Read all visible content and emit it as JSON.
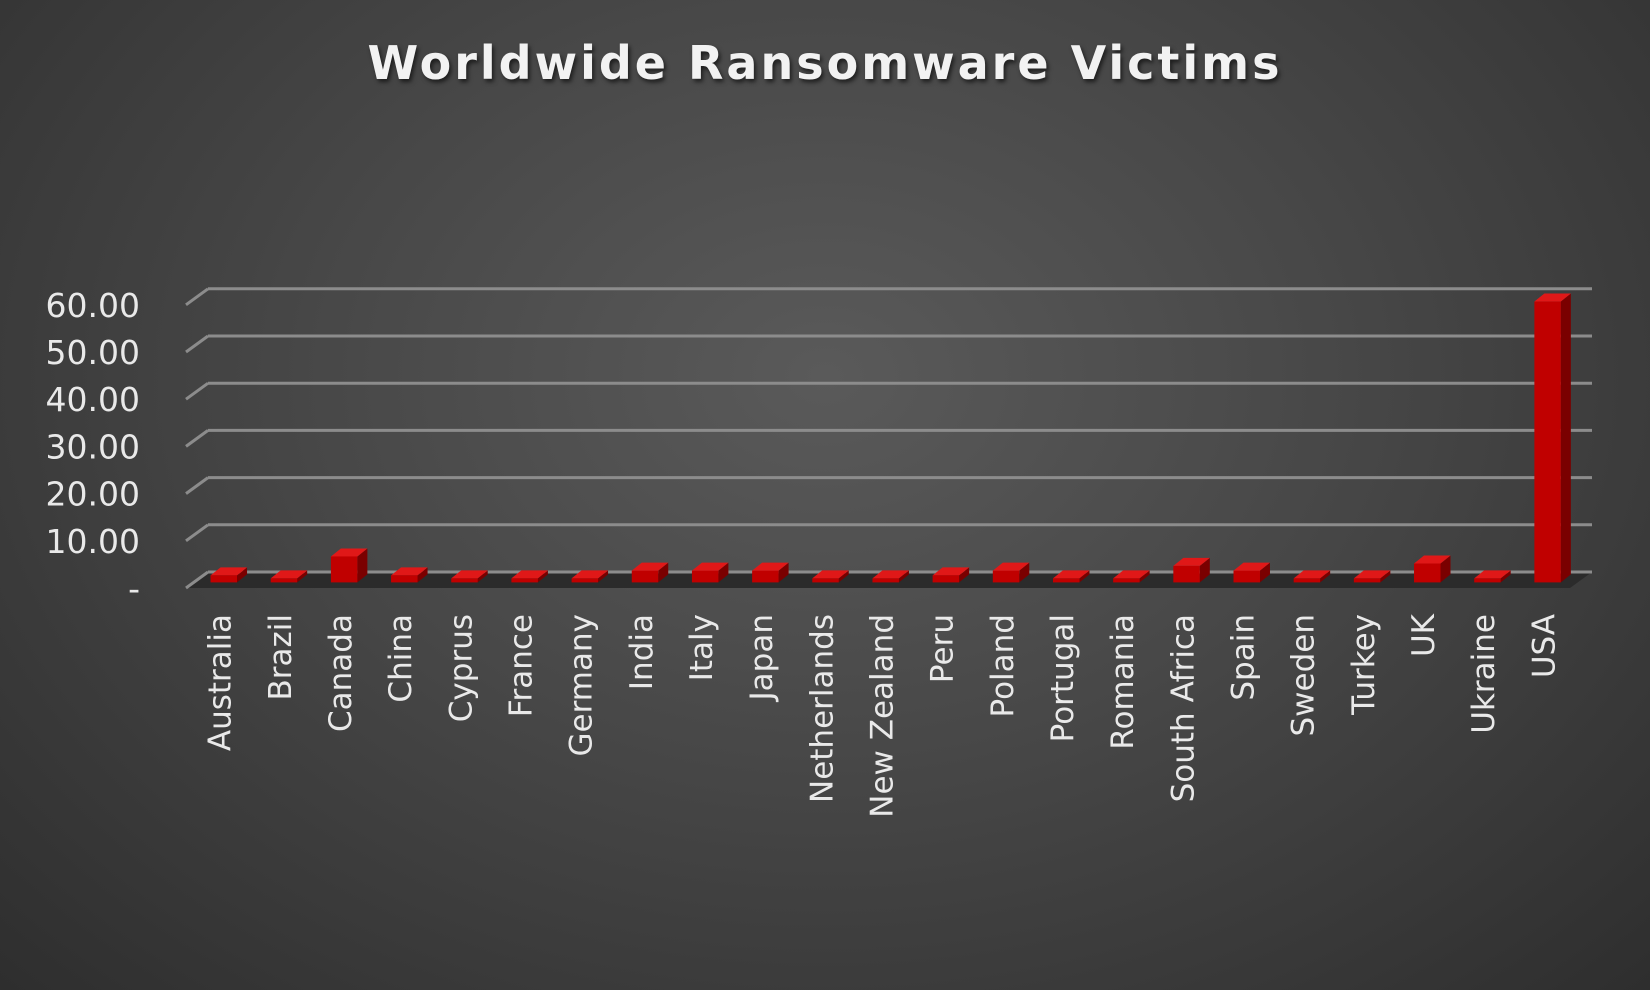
{
  "chart_data": {
    "type": "bar",
    "title": "Worldwide Ransomware Victims",
    "categories": [
      "Australia",
      "Brazil",
      "Canada",
      "China",
      "Cyprus",
      "France",
      "Germany",
      "India",
      "Italy",
      "Japan",
      "Netherlands",
      "New Zealand",
      "Peru",
      "Poland",
      "Portugal",
      "Romania",
      "South Africa",
      "Spain",
      "Sweden",
      "Turkey",
      "UK",
      "Ukraine",
      "USA"
    ],
    "values": [
      1.5,
      0.5,
      5.5,
      1.5,
      0.5,
      0.5,
      0.5,
      2.5,
      2.5,
      2.5,
      0.5,
      0.5,
      1.5,
      2.5,
      0.5,
      0.5,
      3.5,
      2.5,
      0.5,
      0.5,
      4.0,
      0.5,
      59.5
    ],
    "ylim": [
      0,
      60
    ],
    "yticks": [
      0,
      10,
      20,
      30,
      40,
      50,
      60
    ],
    "ytick_labels": [
      "-",
      "10.00",
      "20.00",
      "30.00",
      "40.00",
      "50.00",
      "60.00"
    ],
    "xlabel": "",
    "ylabel": "",
    "grid": true,
    "legend": "none",
    "bar_color": "#c00000",
    "background_color": "#4a4a4a",
    "text_color": "#e9e9e9"
  }
}
